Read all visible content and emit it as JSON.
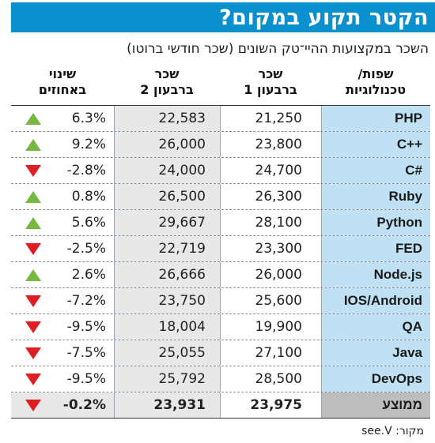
{
  "title": "הקטר תקוע במקום?",
  "subtitle": "השכר במקצועות ההיי־טק השונים (שכר חודשי ברוטו)",
  "headers": {
    "tech": "שפות/\nטכנולוגיות",
    "b1": "שכר\nברבעון 1",
    "b2": "שכר\nברבעון 2",
    "change": "שינוי\nבאחוזים"
  },
  "source": "מקור: see.V",
  "colors": {
    "up": "#77b843",
    "down": "#e11d24",
    "title_bg": "#0a8fcf",
    "tech_bg": "#bfe1f3"
  },
  "chart_data": {
    "type": "table",
    "title": "הקטר תקוע במקום?",
    "subtitle": "השכר במקצועות ההיי־טק השונים (שכר חודשי ברוטו)",
    "columns": [
      "שפות/טכנולוגיות",
      "שכר ברבעון 1",
      "שכר ברבעון 2",
      "שינוי באחוזים"
    ],
    "rows": [
      {
        "tech": "PHP",
        "q1": "21,250",
        "q2": "22,583",
        "change": "6.3%",
        "dir": "up"
      },
      {
        "tech": "C++",
        "q1": "23,800",
        "q2": "26,000",
        "change": "9.2%",
        "dir": "up"
      },
      {
        "tech": "C#",
        "q1": "24,700",
        "q2": "24,000",
        "change": "-2.8%",
        "dir": "down"
      },
      {
        "tech": "Ruby",
        "q1": "26,300",
        "q2": "26,500",
        "change": "0.8%",
        "dir": "up"
      },
      {
        "tech": "Python",
        "q1": "28,100",
        "q2": "29,667",
        "change": "5.6%",
        "dir": "up"
      },
      {
        "tech": "FED",
        "q1": "23,300",
        "q2": "22,719",
        "change": "-2.5%",
        "dir": "down"
      },
      {
        "tech": "Node.js",
        "q1": "26,000",
        "q2": "26,666",
        "change": "2.6%",
        "dir": "up"
      },
      {
        "tech": "IOS/Android",
        "q1": "25,600",
        "q2": "23,750",
        "change": "-7.2%",
        "dir": "down"
      },
      {
        "tech": "QA",
        "q1": "19,900",
        "q2": "18,004",
        "change": "-9.5%",
        "dir": "down"
      },
      {
        "tech": "Java",
        "q1": "27,100",
        "q2": "25,055",
        "change": "-7.5%",
        "dir": "down"
      },
      {
        "tech": "DevOps",
        "q1": "28,500",
        "q2": "25,792",
        "change": "-9.5%",
        "dir": "down"
      }
    ],
    "average": {
      "tech": "ממוצע",
      "q1": "23,975",
      "q2": "23,931",
      "change": "-0.2%",
      "dir": "down"
    }
  }
}
